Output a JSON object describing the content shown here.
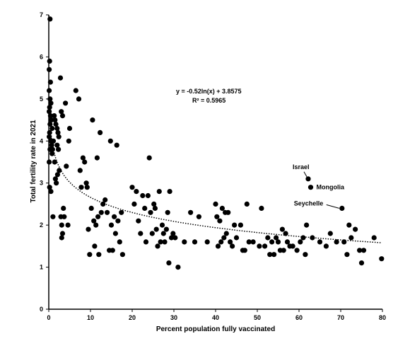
{
  "chart_data": {
    "type": "scatter",
    "xlabel": "Percent population fully vaccinated",
    "ylabel": "Total fertility rate in 2021",
    "xlim": [
      0,
      80
    ],
    "ylim": [
      0,
      7
    ],
    "xticks": [
      "0",
      "10",
      "20",
      "30",
      "40",
      "50",
      "60",
      "70",
      "80"
    ],
    "yticks": [
      "0",
      "1",
      "2",
      "3",
      "4",
      "5",
      "6",
      "7"
    ],
    "grid": false,
    "legend": "none",
    "point_color": "#000000",
    "trendline": {
      "type": "logarithmic",
      "a": -0.52,
      "b": 3.8575,
      "style": "dotted",
      "equation_label": "y = -0.52ln(x) + 3.8575",
      "r2_label": "R² = 0.5965"
    },
    "annotations": [
      {
        "text": "Israel",
        "x": 62.2,
        "y": 3.1
      },
      {
        "text": "Mongolia",
        "x": 62.8,
        "y": 2.9
      },
      {
        "text": "Seychelle",
        "x": 70.3,
        "y": 2.4
      }
    ],
    "points": [
      [
        0.3,
        6.9
      ],
      [
        0.2,
        5.9
      ],
      [
        0.1,
        5.7
      ],
      [
        0.4,
        5.4
      ],
      [
        0.1,
        5.2
      ],
      [
        0.3,
        5.0
      ],
      [
        0.5,
        4.9
      ],
      [
        0.2,
        4.8
      ],
      [
        0.1,
        4.7
      ],
      [
        0.4,
        4.6
      ],
      [
        0.6,
        4.5
      ],
      [
        0.3,
        4.4
      ],
      [
        0.8,
        4.3
      ],
      [
        0.2,
        4.2
      ],
      [
        0.1,
        4.1
      ],
      [
        0.5,
        4.0
      ],
      [
        0.7,
        3.9
      ],
      [
        0.3,
        3.8
      ],
      [
        0.9,
        3.8
      ],
      [
        0.1,
        3.5
      ],
      [
        0.2,
        2.9
      ],
      [
        0.5,
        2.8
      ],
      [
        1.0,
        2.2
      ],
      [
        0.8,
        3.7
      ],
      [
        1.1,
        4.0
      ],
      [
        1.3,
        4.6
      ],
      [
        1.5,
        4.5
      ],
      [
        1.7,
        4.4
      ],
      [
        1.4,
        3.5
      ],
      [
        1.6,
        3.1
      ],
      [
        1.8,
        3.0
      ],
      [
        2.0,
        4.3
      ],
      [
        2.2,
        4.2
      ],
      [
        2.4,
        4.1
      ],
      [
        2.0,
        3.9
      ],
      [
        2.3,
        3.8
      ],
      [
        2.5,
        3.3
      ],
      [
        2.1,
        3.2
      ],
      [
        2.8,
        5.5
      ],
      [
        3.0,
        4.7
      ],
      [
        3.3,
        4.6
      ],
      [
        2.9,
        2.2
      ],
      [
        3.1,
        2.0
      ],
      [
        3.5,
        2.4
      ],
      [
        3.7,
        2.2
      ],
      [
        3.3,
        1.8
      ],
      [
        3.1,
        1.7
      ],
      [
        4.0,
        4.9
      ],
      [
        4.2,
        3.4
      ],
      [
        4.6,
        2.0
      ],
      [
        4.8,
        4.0
      ],
      [
        5.0,
        4.3
      ],
      [
        6.5,
        5.2
      ],
      [
        7.2,
        5.0
      ],
      [
        7.5,
        3.3
      ],
      [
        7.8,
        2.9
      ],
      [
        8.2,
        3.6
      ],
      [
        8.6,
        3.5
      ],
      [
        9.0,
        3.0
      ],
      [
        9.2,
        2.9
      ],
      [
        9.5,
        1.9
      ],
      [
        9.8,
        1.3
      ],
      [
        10.2,
        2.4
      ],
      [
        10.5,
        4.5
      ],
      [
        10.8,
        2.1
      ],
      [
        11.0,
        1.5
      ],
      [
        11.3,
        2.0
      ],
      [
        11.6,
        3.6
      ],
      [
        11.8,
        2.2
      ],
      [
        12.0,
        1.3
      ],
      [
        12.3,
        4.2
      ],
      [
        12.6,
        2.3
      ],
      [
        13.0,
        2.5
      ],
      [
        13.5,
        2.6
      ],
      [
        14.0,
        2.3
      ],
      [
        14.5,
        1.4
      ],
      [
        14.8,
        4.0
      ],
      [
        15.0,
        2.0
      ],
      [
        15.3,
        1.4
      ],
      [
        15.7,
        2.2
      ],
      [
        16.0,
        1.8
      ],
      [
        16.3,
        3.9
      ],
      [
        16.6,
        2.1
      ],
      [
        17.0,
        1.6
      ],
      [
        17.4,
        2.3
      ],
      [
        17.7,
        1.3
      ],
      [
        20.0,
        2.9
      ],
      [
        20.5,
        2.5
      ],
      [
        21.0,
        2.8
      ],
      [
        21.5,
        2.1
      ],
      [
        22.0,
        1.8
      ],
      [
        22.5,
        2.7
      ],
      [
        23.0,
        2.4
      ],
      [
        23.3,
        1.6
      ],
      [
        23.8,
        2.7
      ],
      [
        24.1,
        3.6
      ],
      [
        24.4,
        2.3
      ],
      [
        24.8,
        1.8
      ],
      [
        25.2,
        2.5
      ],
      [
        25.5,
        2.4
      ],
      [
        25.8,
        1.9
      ],
      [
        26.1,
        1.5
      ],
      [
        26.5,
        2.8
      ],
      [
        26.8,
        1.6
      ],
      [
        27.2,
        2.0
      ],
      [
        27.5,
        1.8
      ],
      [
        27.8,
        1.6
      ],
      [
        28.2,
        1.9
      ],
      [
        28.5,
        2.3
      ],
      [
        28.8,
        1.1
      ],
      [
        29.0,
        2.8
      ],
      [
        29.4,
        1.7
      ],
      [
        29.8,
        1.8
      ],
      [
        30.3,
        1.7
      ],
      [
        31.0,
        1.0
      ],
      [
        32.5,
        1.6
      ],
      [
        34.0,
        2.3
      ],
      [
        35.0,
        1.6
      ],
      [
        36.0,
        2.2
      ],
      [
        38.0,
        1.6
      ],
      [
        40.0,
        2.5
      ],
      [
        40.3,
        2.2
      ],
      [
        40.6,
        1.5
      ],
      [
        41.0,
        2.1
      ],
      [
        41.3,
        1.6
      ],
      [
        41.6,
        2.4
      ],
      [
        42.0,
        1.7
      ],
      [
        42.3,
        2.3
      ],
      [
        42.6,
        1.8
      ],
      [
        43.0,
        2.3
      ],
      [
        43.5,
        1.6
      ],
      [
        44.0,
        1.5
      ],
      [
        44.5,
        2.0
      ],
      [
        45.0,
        1.7
      ],
      [
        46.0,
        2.0
      ],
      [
        46.5,
        1.4
      ],
      [
        47.0,
        1.4
      ],
      [
        47.5,
        2.5
      ],
      [
        48.0,
        1.6
      ],
      [
        49.0,
        1.6
      ],
      [
        50.5,
        1.5
      ],
      [
        51.0,
        2.4
      ],
      [
        51.8,
        1.5
      ],
      [
        52.5,
        1.7
      ],
      [
        53.0,
        1.3
      ],
      [
        53.5,
        1.6
      ],
      [
        54.0,
        1.3
      ],
      [
        54.5,
        1.7
      ],
      [
        55.0,
        1.6
      ],
      [
        55.5,
        1.4
      ],
      [
        56.0,
        1.9
      ],
      [
        56.3,
        1.4
      ],
      [
        56.8,
        1.8
      ],
      [
        57.2,
        1.6
      ],
      [
        57.8,
        1.5
      ],
      [
        58.5,
        1.5
      ],
      [
        59.5,
        1.4
      ],
      [
        60.3,
        1.6
      ],
      [
        61.0,
        1.7
      ],
      [
        61.5,
        1.3
      ],
      [
        61.8,
        2.0
      ],
      [
        62.2,
        3.1
      ],
      [
        62.8,
        2.9
      ],
      [
        63.2,
        1.7
      ],
      [
        65.0,
        1.6
      ],
      [
        66.5,
        1.5
      ],
      [
        67.5,
        1.8
      ],
      [
        69.0,
        1.6
      ],
      [
        70.3,
        2.4
      ],
      [
        70.8,
        1.6
      ],
      [
        71.5,
        1.3
      ],
      [
        72.0,
        2.0
      ],
      [
        72.5,
        1.7
      ],
      [
        73.5,
        1.9
      ],
      [
        74.5,
        1.4
      ],
      [
        75.0,
        1.1
      ],
      [
        75.5,
        1.4
      ],
      [
        78.0,
        1.7
      ],
      [
        79.8,
        1.2
      ]
    ]
  }
}
